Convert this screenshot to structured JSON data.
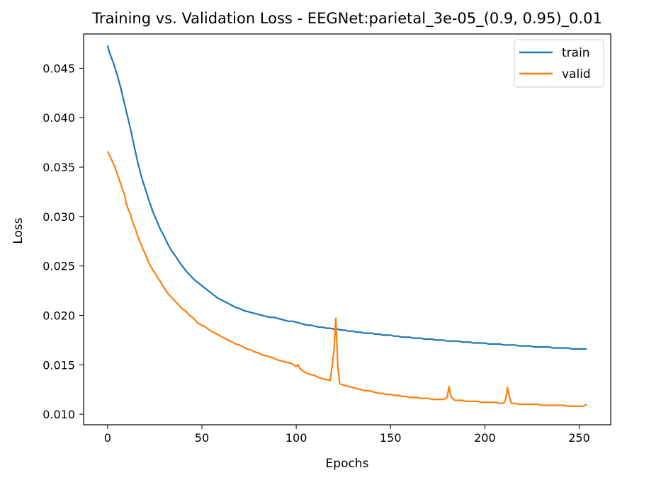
{
  "chart_data": {
    "type": "line",
    "title": "Training vs. Validation Loss - EEGNet:parietal_3e-05_(0.9, 0.95)_0.01",
    "xlabel": "Epochs",
    "ylabel": "Loss",
    "xlim": [
      -12.7,
      266.7
    ],
    "ylim": [
      0.00893,
      0.04847
    ],
    "xticks": [
      0,
      50,
      100,
      150,
      200,
      250
    ],
    "yticks": [
      0.01,
      0.015,
      0.02,
      0.025,
      0.03,
      0.035,
      0.04,
      0.045
    ],
    "grid": false,
    "legend_position": "top-right",
    "series": [
      {
        "name": "train",
        "color": "#1f77b4",
        "x": [
          0,
          1,
          2,
          3,
          4,
          5,
          6,
          7,
          8,
          9,
          10,
          12,
          14,
          16,
          18,
          20,
          22,
          24,
          26,
          28,
          30,
          32,
          34,
          36,
          38,
          40,
          42,
          44,
          46,
          48,
          50,
          52,
          54,
          56,
          58,
          60,
          62,
          64,
          66,
          68,
          70,
          72,
          74,
          76,
          78,
          80,
          82,
          84,
          86,
          88,
          90,
          92,
          94,
          96,
          98,
          100,
          102,
          104,
          106,
          108,
          110,
          112,
          114,
          116,
          118,
          120,
          122,
          124,
          126,
          128,
          130,
          132,
          134,
          136,
          138,
          140,
          142,
          144,
          146,
          148,
          150,
          152,
          154,
          156,
          158,
          160,
          162,
          164,
          166,
          168,
          170,
          172,
          174,
          176,
          178,
          180,
          182,
          184,
          186,
          188,
          190,
          192,
          194,
          196,
          198,
          200,
          202,
          204,
          206,
          208,
          210,
          212,
          214,
          216,
          218,
          220,
          222,
          224,
          226,
          228,
          230,
          232,
          234,
          236,
          238,
          240,
          242,
          244,
          246,
          248,
          250,
          252,
          254
        ],
        "y": [
          0.0473,
          0.0466,
          0.0461,
          0.0456,
          0.045,
          0.0444,
          0.0437,
          0.043,
          0.0422,
          0.0414,
          0.0406,
          0.039,
          0.0372,
          0.0355,
          0.034,
          0.0328,
          0.0316,
          0.0305,
          0.0296,
          0.0287,
          0.028,
          0.0272,
          0.0265,
          0.026,
          0.0254,
          0.0249,
          0.0244,
          0.024,
          0.0236,
          0.0233,
          0.023,
          0.0227,
          0.0224,
          0.0221,
          0.0218,
          0.0216,
          0.0214,
          0.0212,
          0.021,
          0.0208,
          0.0207,
          0.0205,
          0.0204,
          0.0203,
          0.0202,
          0.0201,
          0.02,
          0.0199,
          0.0198,
          0.0198,
          0.0197,
          0.0196,
          0.0195,
          0.0194,
          0.0194,
          0.0193,
          0.0192,
          0.0191,
          0.019,
          0.019,
          0.0189,
          0.0188,
          0.0188,
          0.0187,
          0.0187,
          0.0186,
          0.0186,
          0.0185,
          0.0185,
          0.0184,
          0.0184,
          0.0183,
          0.0183,
          0.0182,
          0.0182,
          0.0182,
          0.0181,
          0.0181,
          0.018,
          0.018,
          0.018,
          0.0179,
          0.0179,
          0.0178,
          0.0178,
          0.0178,
          0.0177,
          0.0177,
          0.0177,
          0.0176,
          0.0176,
          0.0176,
          0.0175,
          0.0175,
          0.0175,
          0.0174,
          0.0174,
          0.0174,
          0.0174,
          0.0173,
          0.0173,
          0.0173,
          0.0172,
          0.0172,
          0.0172,
          0.0172,
          0.0171,
          0.0171,
          0.0171,
          0.0171,
          0.017,
          0.017,
          0.017,
          0.017,
          0.0169,
          0.0169,
          0.0169,
          0.0169,
          0.0168,
          0.0168,
          0.0168,
          0.0168,
          0.0168,
          0.0167,
          0.0167,
          0.0167,
          0.0167,
          0.0167,
          0.0166,
          0.0166,
          0.0166,
          0.0166,
          0.0166
        ]
      },
      {
        "name": "valid",
        "color": "#ff7f0e",
        "x": [
          0,
          1,
          2,
          3,
          4,
          5,
          6,
          7,
          8,
          9,
          10,
          11,
          12,
          13,
          14,
          15,
          16,
          17,
          18,
          19,
          20,
          21,
          22,
          23,
          24,
          25,
          26,
          27,
          28,
          29,
          30,
          31,
          32,
          33,
          34,
          35,
          36,
          37,
          38,
          39,
          40,
          41,
          42,
          43,
          44,
          45,
          46,
          48,
          50,
          52,
          54,
          56,
          58,
          60,
          62,
          64,
          66,
          68,
          70,
          72,
          74,
          76,
          78,
          80,
          82,
          84,
          86,
          88,
          90,
          92,
          94,
          96,
          98,
          100,
          101,
          102,
          104,
          106,
          108,
          110,
          112,
          114,
          116,
          118,
          119,
          120,
          121,
          122,
          123,
          124,
          126,
          128,
          130,
          132,
          134,
          136,
          138,
          140,
          142,
          144,
          146,
          148,
          150,
          152,
          154,
          156,
          158,
          160,
          162,
          164,
          166,
          168,
          170,
          172,
          174,
          176,
          178,
          180,
          181,
          182,
          184,
          186,
          188,
          190,
          192,
          194,
          196,
          198,
          200,
          202,
          204,
          206,
          208,
          210,
          211,
          212,
          213,
          214,
          216,
          218,
          220,
          222,
          224,
          226,
          228,
          230,
          232,
          234,
          236,
          238,
          240,
          242,
          244,
          246,
          248,
          250,
          252,
          254
        ],
        "y": [
          0.0366,
          0.0362,
          0.0358,
          0.0354,
          0.0349,
          0.0344,
          0.0338,
          0.0333,
          0.0327,
          0.0322,
          0.0313,
          0.0307,
          0.0303,
          0.0296,
          0.0291,
          0.0286,
          0.028,
          0.0275,
          0.0271,
          0.0266,
          0.0262,
          0.0257,
          0.0253,
          0.0249,
          0.0246,
          0.0243,
          0.024,
          0.0237,
          0.0234,
          0.0231,
          0.0228,
          0.0225,
          0.0222,
          0.022,
          0.0218,
          0.0216,
          0.0214,
          0.0212,
          0.021,
          0.0208,
          0.0206,
          0.0205,
          0.0203,
          0.0201,
          0.0199,
          0.0198,
          0.0196,
          0.0192,
          0.019,
          0.0188,
          0.0185,
          0.0183,
          0.0181,
          0.0179,
          0.0177,
          0.0175,
          0.0173,
          0.0171,
          0.017,
          0.0168,
          0.0166,
          0.0165,
          0.0163,
          0.0162,
          0.016,
          0.0159,
          0.0158,
          0.0157,
          0.0155,
          0.0154,
          0.0153,
          0.0152,
          0.0151,
          0.0148,
          0.015,
          0.0146,
          0.0143,
          0.0141,
          0.014,
          0.0139,
          0.0137,
          0.0136,
          0.0135,
          0.0134,
          0.0148,
          0.0164,
          0.0197,
          0.015,
          0.0131,
          0.013,
          0.0129,
          0.0128,
          0.0127,
          0.0126,
          0.0125,
          0.0124,
          0.0124,
          0.0123,
          0.0122,
          0.0121,
          0.0121,
          0.012,
          0.012,
          0.0119,
          0.0119,
          0.0118,
          0.0118,
          0.0117,
          0.0117,
          0.0117,
          0.0116,
          0.0116,
          0.0116,
          0.0115,
          0.0115,
          0.0115,
          0.0115,
          0.0117,
          0.0128,
          0.0118,
          0.0114,
          0.0114,
          0.0114,
          0.0113,
          0.0113,
          0.0113,
          0.0113,
          0.0112,
          0.0112,
          0.0112,
          0.0112,
          0.0112,
          0.0111,
          0.0111,
          0.0115,
          0.0127,
          0.0118,
          0.0111,
          0.0111,
          0.011,
          0.011,
          0.011,
          0.011,
          0.011,
          0.011,
          0.0109,
          0.0109,
          0.0109,
          0.0109,
          0.0109,
          0.0109,
          0.0109,
          0.0108,
          0.0108,
          0.0108,
          0.0108,
          0.0108,
          0.011
        ]
      }
    ]
  }
}
